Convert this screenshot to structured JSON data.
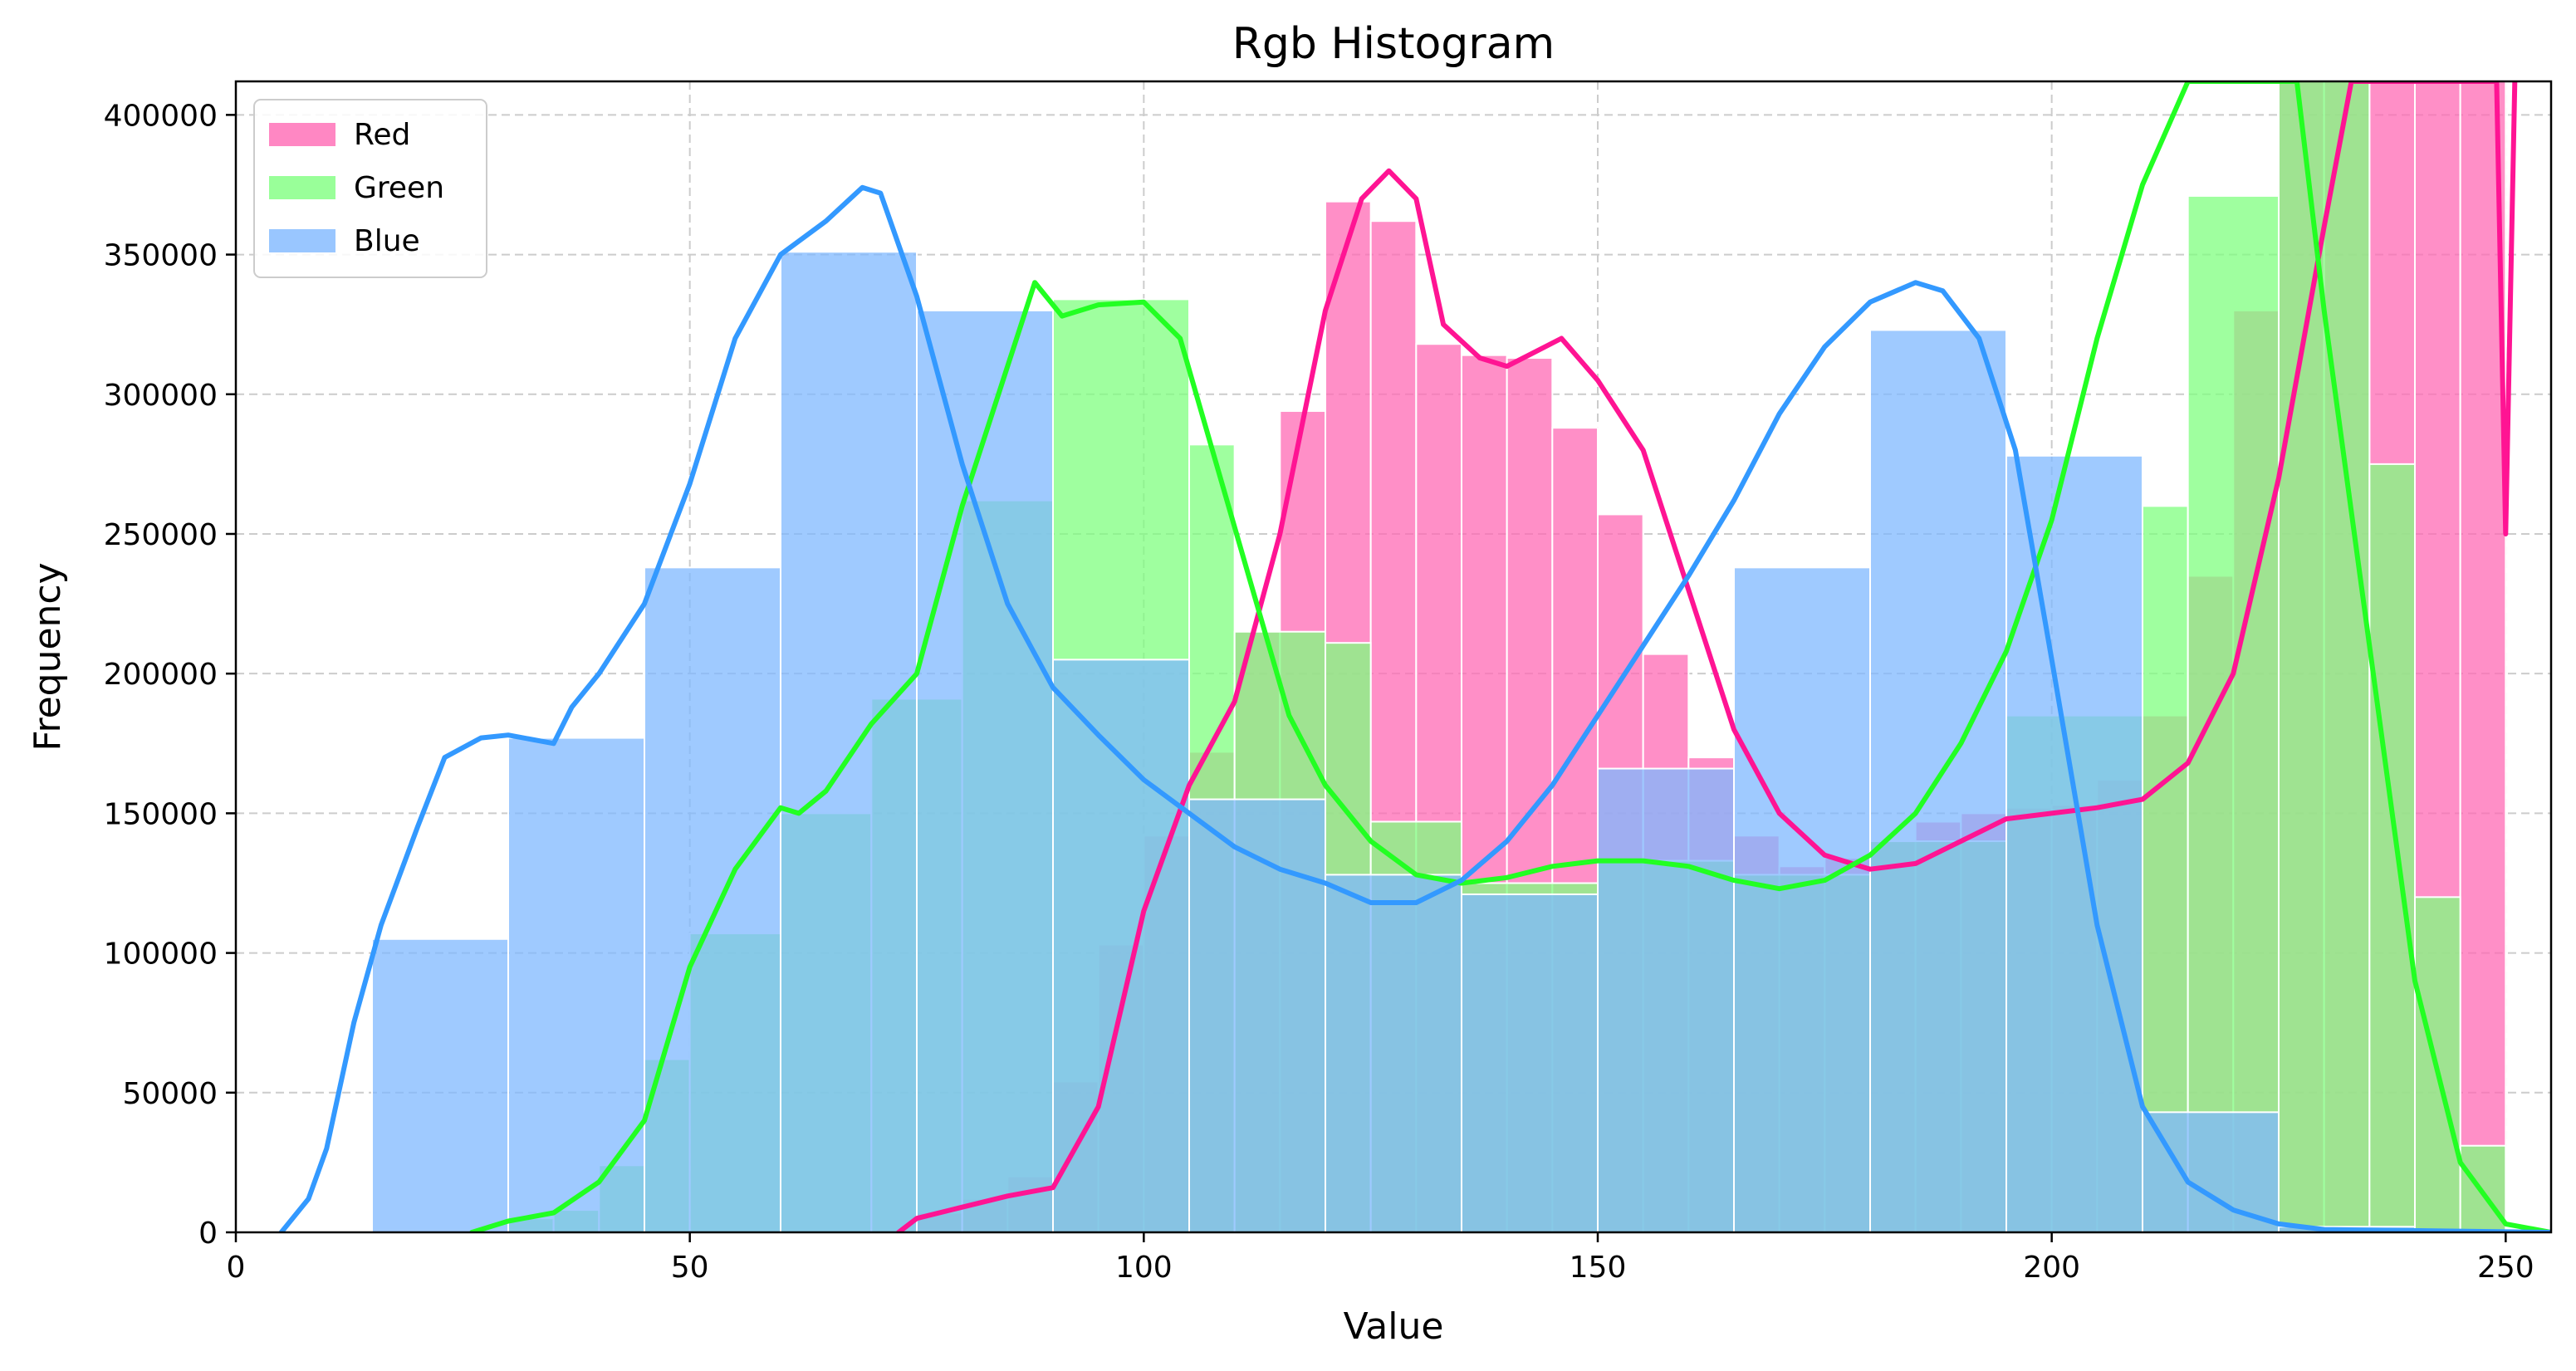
{
  "chart_data": {
    "type": "bar",
    "title": "Rgb Histogram",
    "xlabel": "Value",
    "ylabel": "Frequency",
    "xlim": [
      0,
      255
    ],
    "ylim": [
      0,
      412000
    ],
    "xticks": [
      0,
      50,
      100,
      150,
      200,
      250
    ],
    "yticks": [
      0,
      50000,
      100000,
      150000,
      200000,
      250000,
      300000,
      350000,
      400000
    ],
    "grid": true,
    "legend_position": "top-left",
    "series": [
      {
        "name": "Red",
        "color": "#ff69b4",
        "line_color": "#ff1493",
        "bins": [
          {
            "x0": 75,
            "x1": 80,
            "value": 7000
          },
          {
            "x0": 80,
            "x1": 85,
            "value": 12000
          },
          {
            "x0": 85,
            "x1": 90,
            "value": 20000
          },
          {
            "x0": 90,
            "x1": 95,
            "value": 54000
          },
          {
            "x0": 95,
            "x1": 100,
            "value": 103000
          },
          {
            "x0": 100,
            "x1": 105,
            "value": 142000
          },
          {
            "x0": 105,
            "x1": 110,
            "value": 172000
          },
          {
            "x0": 110,
            "x1": 115,
            "value": 215000
          },
          {
            "x0": 115,
            "x1": 120,
            "value": 294000
          },
          {
            "x0": 120,
            "x1": 125,
            "value": 369000
          },
          {
            "x0": 125,
            "x1": 130,
            "value": 362000
          },
          {
            "x0": 130,
            "x1": 135,
            "value": 318000
          },
          {
            "x0": 135,
            "x1": 140,
            "value": 314000
          },
          {
            "x0": 140,
            "x1": 145,
            "value": 313000
          },
          {
            "x0": 145,
            "x1": 150,
            "value": 288000
          },
          {
            "x0": 150,
            "x1": 155,
            "value": 257000
          },
          {
            "x0": 155,
            "x1": 160,
            "value": 207000
          },
          {
            "x0": 160,
            "x1": 165,
            "value": 170000
          },
          {
            "x0": 165,
            "x1": 170,
            "value": 142000
          },
          {
            "x0": 170,
            "x1": 175,
            "value": 131000
          },
          {
            "x0": 175,
            "x1": 180,
            "value": 134000
          },
          {
            "x0": 180,
            "x1": 185,
            "value": 140000
          },
          {
            "x0": 185,
            "x1": 190,
            "value": 147000
          },
          {
            "x0": 190,
            "x1": 195,
            "value": 150000
          },
          {
            "x0": 195,
            "x1": 200,
            "value": 152000
          },
          {
            "x0": 200,
            "x1": 205,
            "value": 153000
          },
          {
            "x0": 205,
            "x1": 210,
            "value": 162000
          },
          {
            "x0": 210,
            "x1": 215,
            "value": 185000
          },
          {
            "x0": 215,
            "x1": 220,
            "value": 235000
          },
          {
            "x0": 220,
            "x1": 225,
            "value": 330000
          },
          {
            "x0": 225,
            "x1": 230,
            "value": 412000
          },
          {
            "x0": 230,
            "x1": 235,
            "value": 412000
          },
          {
            "x0": 235,
            "x1": 240,
            "value": 412000
          },
          {
            "x0": 240,
            "x1": 245,
            "value": 412000
          },
          {
            "x0": 245,
            "x1": 250,
            "value": 412000
          }
        ],
        "density_curve": [
          [
            73,
            0
          ],
          [
            75,
            5000
          ],
          [
            80,
            9000
          ],
          [
            85,
            13000
          ],
          [
            90,
            16000
          ],
          [
            95,
            45000
          ],
          [
            100,
            115000
          ],
          [
            105,
            160000
          ],
          [
            110,
            190000
          ],
          [
            115,
            250000
          ],
          [
            120,
            330000
          ],
          [
            124,
            370000
          ],
          [
            127,
            380000
          ],
          [
            130,
            370000
          ],
          [
            133,
            325000
          ],
          [
            137,
            313000
          ],
          [
            140,
            310000
          ],
          [
            143,
            315000
          ],
          [
            146,
            320000
          ],
          [
            150,
            305000
          ],
          [
            155,
            280000
          ],
          [
            160,
            230000
          ],
          [
            165,
            180000
          ],
          [
            170,
            150000
          ],
          [
            175,
            135000
          ],
          [
            180,
            130000
          ],
          [
            185,
            132000
          ],
          [
            190,
            140000
          ],
          [
            195,
            148000
          ],
          [
            200,
            150000
          ],
          [
            205,
            152000
          ],
          [
            210,
            155000
          ],
          [
            215,
            168000
          ],
          [
            220,
            200000
          ],
          [
            225,
            270000
          ],
          [
            230,
            360000
          ],
          [
            233,
            412000
          ],
          [
            249,
            412000
          ],
          [
            250,
            250000
          ],
          [
            251,
            412000
          ]
        ]
      },
      {
        "name": "Green",
        "color": "#7fff7f",
        "line_color": "#22ff22",
        "bins": [
          {
            "x0": 30,
            "x1": 35,
            "value": 5000
          },
          {
            "x0": 35,
            "x1": 40,
            "value": 8000
          },
          {
            "x0": 40,
            "x1": 45,
            "value": 24000
          },
          {
            "x0": 45,
            "x1": 50,
            "value": 62000
          },
          {
            "x0": 50,
            "x1": 60,
            "value": 107000
          },
          {
            "x0": 60,
            "x1": 70,
            "value": 150000
          },
          {
            "x0": 70,
            "x1": 80,
            "value": 191000
          },
          {
            "x0": 80,
            "x1": 90,
            "value": 262000
          },
          {
            "x0": 90,
            "x1": 105,
            "value": 334000
          },
          {
            "x0": 105,
            "x1": 110,
            "value": 282000
          },
          {
            "x0": 110,
            "x1": 120,
            "value": 215000
          },
          {
            "x0": 120,
            "x1": 125,
            "value": 211000
          },
          {
            "x0": 125,
            "x1": 135,
            "value": 147000
          },
          {
            "x0": 135,
            "x1": 150,
            "value": 125000
          },
          {
            "x0": 150,
            "x1": 165,
            "value": 133000
          },
          {
            "x0": 165,
            "x1": 180,
            "value": 128000
          },
          {
            "x0": 180,
            "x1": 195,
            "value": 140000
          },
          {
            "x0": 195,
            "x1": 210,
            "value": 185000
          },
          {
            "x0": 210,
            "x1": 215,
            "value": 260000
          },
          {
            "x0": 215,
            "x1": 225,
            "value": 371000
          },
          {
            "x0": 225,
            "x1": 235,
            "value": 412000
          },
          {
            "x0": 235,
            "x1": 240,
            "value": 275000
          },
          {
            "x0": 240,
            "x1": 245,
            "value": 120000
          },
          {
            "x0": 245,
            "x1": 250,
            "value": 31000
          }
        ],
        "density_curve": [
          [
            26,
            0
          ],
          [
            30,
            4000
          ],
          [
            35,
            7000
          ],
          [
            40,
            18000
          ],
          [
            45,
            40000
          ],
          [
            50,
            95000
          ],
          [
            55,
            130000
          ],
          [
            60,
            152000
          ],
          [
            62,
            150000
          ],
          [
            65,
            158000
          ],
          [
            70,
            182000
          ],
          [
            75,
            200000
          ],
          [
            80,
            260000
          ],
          [
            85,
            310000
          ],
          [
            88,
            340000
          ],
          [
            91,
            328000
          ],
          [
            95,
            332000
          ],
          [
            100,
            333000
          ],
          [
            104,
            320000
          ],
          [
            108,
            275000
          ],
          [
            112,
            230000
          ],
          [
            116,
            185000
          ],
          [
            120,
            160000
          ],
          [
            125,
            140000
          ],
          [
            130,
            128000
          ],
          [
            135,
            125000
          ],
          [
            140,
            127000
          ],
          [
            145,
            131000
          ],
          [
            150,
            133000
          ],
          [
            155,
            133000
          ],
          [
            160,
            131000
          ],
          [
            165,
            126000
          ],
          [
            170,
            123000
          ],
          [
            175,
            126000
          ],
          [
            180,
            135000
          ],
          [
            185,
            150000
          ],
          [
            190,
            175000
          ],
          [
            195,
            208000
          ],
          [
            200,
            255000
          ],
          [
            205,
            320000
          ],
          [
            210,
            375000
          ],
          [
            215,
            412000
          ],
          [
            227,
            412000
          ],
          [
            230,
            330000
          ],
          [
            235,
            210000
          ],
          [
            240,
            90000
          ],
          [
            245,
            25000
          ],
          [
            250,
            3000
          ],
          [
            255,
            0
          ]
        ]
      },
      {
        "name": "Blue",
        "color": "#7fb8ff",
        "line_color": "#3399ff",
        "bins": [
          {
            "x0": 15,
            "x1": 30,
            "value": 105000
          },
          {
            "x0": 30,
            "x1": 45,
            "value": 177000
          },
          {
            "x0": 45,
            "x1": 60,
            "value": 238000
          },
          {
            "x0": 60,
            "x1": 75,
            "value": 351000
          },
          {
            "x0": 75,
            "x1": 90,
            "value": 330000
          },
          {
            "x0": 90,
            "x1": 105,
            "value": 205000
          },
          {
            "x0": 105,
            "x1": 120,
            "value": 155000
          },
          {
            "x0": 120,
            "x1": 135,
            "value": 128000
          },
          {
            "x0": 135,
            "x1": 150,
            "value": 121000
          },
          {
            "x0": 150,
            "x1": 165,
            "value": 166000
          },
          {
            "x0": 165,
            "x1": 180,
            "value": 238000
          },
          {
            "x0": 180,
            "x1": 195,
            "value": 323000
          },
          {
            "x0": 195,
            "x1": 210,
            "value": 278000
          },
          {
            "x0": 210,
            "x1": 225,
            "value": 43000
          },
          {
            "x0": 225,
            "x1": 240,
            "value": 2000
          }
        ],
        "density_curve": [
          [
            5,
            0
          ],
          [
            8,
            12000
          ],
          [
            10,
            30000
          ],
          [
            13,
            75000
          ],
          [
            16,
            110000
          ],
          [
            20,
            145000
          ],
          [
            23,
            170000
          ],
          [
            27,
            177000
          ],
          [
            30,
            178000
          ],
          [
            35,
            175000
          ],
          [
            37,
            188000
          ],
          [
            40,
            200000
          ],
          [
            45,
            225000
          ],
          [
            50,
            268000
          ],
          [
            55,
            320000
          ],
          [
            60,
            350000
          ],
          [
            65,
            362000
          ],
          [
            69,
            374000
          ],
          [
            71,
            372000
          ],
          [
            75,
            335000
          ],
          [
            80,
            275000
          ],
          [
            85,
            225000
          ],
          [
            90,
            195000
          ],
          [
            95,
            178000
          ],
          [
            100,
            162000
          ],
          [
            105,
            150000
          ],
          [
            110,
            138000
          ],
          [
            115,
            130000
          ],
          [
            120,
            125000
          ],
          [
            125,
            118000
          ],
          [
            130,
            118000
          ],
          [
            135,
            126000
          ],
          [
            140,
            140000
          ],
          [
            145,
            160000
          ],
          [
            150,
            185000
          ],
          [
            155,
            210000
          ],
          [
            160,
            235000
          ],
          [
            165,
            262000
          ],
          [
            170,
            293000
          ],
          [
            175,
            317000
          ],
          [
            180,
            333000
          ],
          [
            185,
            340000
          ],
          [
            188,
            337000
          ],
          [
            192,
            320000
          ],
          [
            196,
            280000
          ],
          [
            200,
            205000
          ],
          [
            205,
            110000
          ],
          [
            210,
            45000
          ],
          [
            215,
            18000
          ],
          [
            220,
            8000
          ],
          [
            225,
            3000
          ],
          [
            230,
            1000
          ],
          [
            255,
            0
          ]
        ]
      }
    ]
  }
}
